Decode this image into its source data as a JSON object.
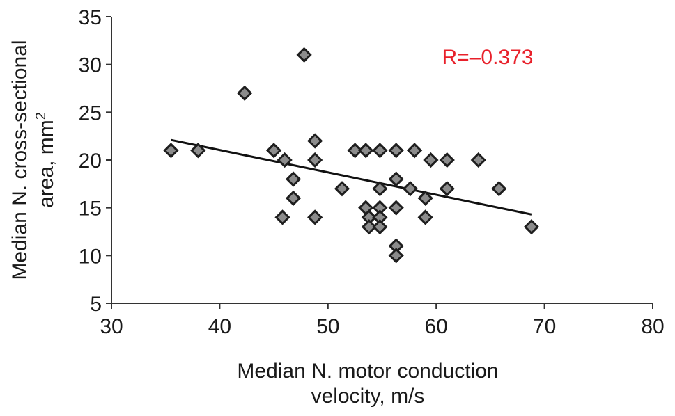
{
  "chart_data": {
    "type": "scatter",
    "title": "",
    "xlabel_lines": [
      "Median N. motor conduction",
      "velocity, m/s"
    ],
    "ylabel_lines": [
      "Median N. cross-sectional",
      "area, mm"
    ],
    "ylabel_superscript": "2",
    "xlim": [
      30,
      80
    ],
    "ylim": [
      5,
      35
    ],
    "xticks": [
      30,
      40,
      50,
      60,
      70,
      80
    ],
    "yticks": [
      5,
      10,
      15,
      20,
      25,
      30,
      35
    ],
    "grid": false,
    "legend": "none",
    "annotation": {
      "text": "R=–0.373",
      "color": "#e8202a"
    },
    "marker": {
      "shape": "diamond",
      "fill": "#8c8c8c",
      "stroke": "#1e1e1e"
    },
    "points": [
      {
        "x": 35.5,
        "y": 21
      },
      {
        "x": 38.0,
        "y": 21
      },
      {
        "x": 42.3,
        "y": 27
      },
      {
        "x": 45.0,
        "y": 21
      },
      {
        "x": 45.8,
        "y": 14
      },
      {
        "x": 46.0,
        "y": 20
      },
      {
        "x": 46.8,
        "y": 18
      },
      {
        "x": 46.8,
        "y": 16
      },
      {
        "x": 47.8,
        "y": 31
      },
      {
        "x": 48.8,
        "y": 22
      },
      {
        "x": 48.8,
        "y": 20
      },
      {
        "x": 48.8,
        "y": 14
      },
      {
        "x": 51.3,
        "y": 17
      },
      {
        "x": 52.5,
        "y": 21
      },
      {
        "x": 53.5,
        "y": 21
      },
      {
        "x": 53.5,
        "y": 15
      },
      {
        "x": 53.8,
        "y": 14
      },
      {
        "x": 53.8,
        "y": 13
      },
      {
        "x": 54.8,
        "y": 21
      },
      {
        "x": 54.8,
        "y": 17
      },
      {
        "x": 54.8,
        "y": 15
      },
      {
        "x": 54.8,
        "y": 14
      },
      {
        "x": 54.8,
        "y": 13
      },
      {
        "x": 56.3,
        "y": 21
      },
      {
        "x": 56.3,
        "y": 18
      },
      {
        "x": 56.3,
        "y": 15
      },
      {
        "x": 56.3,
        "y": 11
      },
      {
        "x": 56.3,
        "y": 10
      },
      {
        "x": 57.6,
        "y": 17
      },
      {
        "x": 58.0,
        "y": 21
      },
      {
        "x": 59.0,
        "y": 16
      },
      {
        "x": 59.0,
        "y": 14
      },
      {
        "x": 59.5,
        "y": 20
      },
      {
        "x": 61.0,
        "y": 20
      },
      {
        "x": 61.0,
        "y": 17
      },
      {
        "x": 63.9,
        "y": 20
      },
      {
        "x": 65.8,
        "y": 17
      },
      {
        "x": 68.8,
        "y": 13
      }
    ],
    "trendline": {
      "x": [
        35.5,
        68.8
      ],
      "y": [
        22.1,
        14.3
      ],
      "color": "#111111"
    }
  }
}
